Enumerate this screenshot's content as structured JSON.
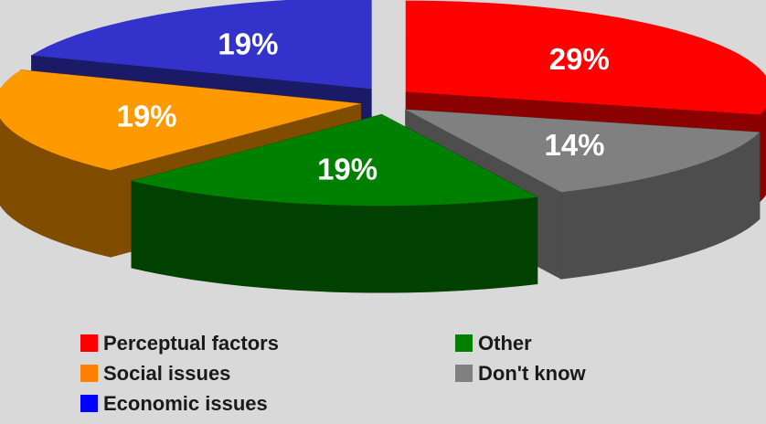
{
  "chart_data": {
    "type": "pie",
    "title": "",
    "categories": [
      "Perceptual factors",
      "Other",
      "Social issues",
      "Don't know",
      "Economic issues"
    ],
    "slices": [
      {
        "label": "Perceptual factors",
        "value": 29,
        "value_label": "29%",
        "color": "#ff0000",
        "side_color": "#8b0000"
      },
      {
        "label": "Don't know",
        "value": 14,
        "value_label": "14%",
        "color": "#808080",
        "side_color": "#4d4d4d"
      },
      {
        "label": "Other",
        "value": 19,
        "value_label": "19%",
        "color": "#008000",
        "side_color": "#004000"
      },
      {
        "label": "Social issues",
        "value": 19,
        "value_label": "19%",
        "color": "#ff9900",
        "side_color": "#7f4c00"
      },
      {
        "label": "Economic issues",
        "value": 19,
        "value_label": "19%",
        "color": "#3333cc",
        "side_color": "#1a1a66"
      }
    ],
    "legend_position": "bottom",
    "exploded": true,
    "three_d": true
  },
  "legend": {
    "items": [
      {
        "label": "Perceptual factors",
        "color": "#ff0000"
      },
      {
        "label": "Other",
        "color": "#008000"
      },
      {
        "label": "Social issues",
        "color": "#ff8000"
      },
      {
        "label": "Don't know",
        "color": "#808080"
      },
      {
        "label": "Economic issues",
        "color": "#0000ff"
      }
    ]
  }
}
